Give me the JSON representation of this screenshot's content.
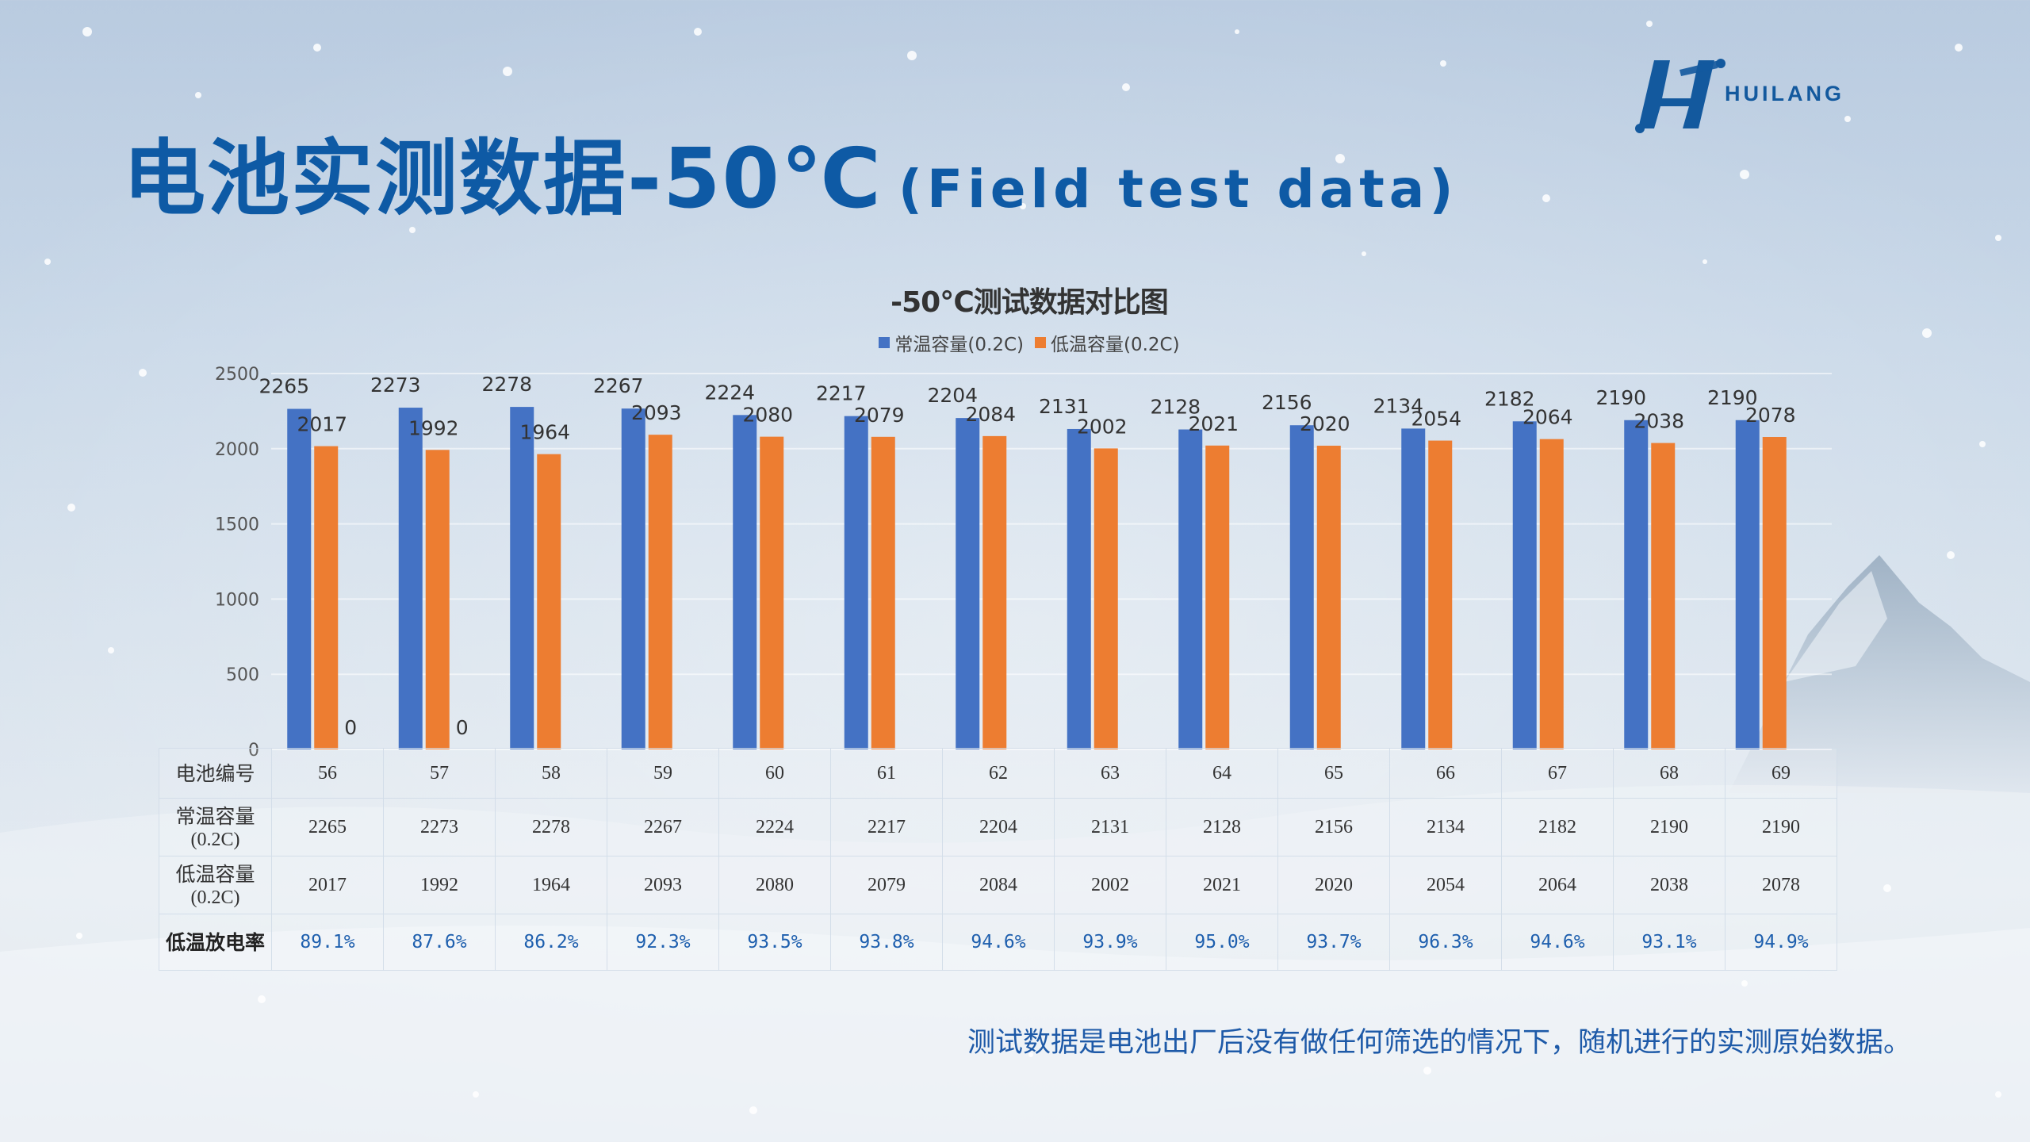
{
  "brand": {
    "name": "HUILANG",
    "logo_icon": "huilang-h-logo-icon",
    "color": "#13599e"
  },
  "header": {
    "title": "电池实测数据-50℃",
    "subtitle": "(Field test data)",
    "title_color": "#0e5aa5"
  },
  "chart_data": {
    "type": "bar",
    "title": "-50℃测试数据对比图",
    "xlabel": "",
    "ylabel": "",
    "ylim": [
      0,
      2500
    ],
    "yticks": [
      0,
      500,
      1000,
      1500,
      2000,
      2500
    ],
    "grid": true,
    "legend": "top-center",
    "categories": [
      "56",
      "57",
      "58",
      "59",
      "60",
      "61",
      "62",
      "63",
      "64",
      "65",
      "66",
      "67",
      "68",
      "69"
    ],
    "series": [
      {
        "name": "常温容量(0.2C)",
        "color": "#4472c4",
        "values": [
          2265,
          2273,
          2278,
          2267,
          2224,
          2217,
          2204,
          2131,
          2128,
          2156,
          2134,
          2182,
          2190,
          2190
        ]
      },
      {
        "name": "低温容量(0.2C)",
        "color": "#ed7d31",
        "values": [
          2017,
          1992,
          1964,
          2093,
          2080,
          2079,
          2084,
          2002,
          2021,
          2020,
          2054,
          2064,
          2038,
          2078
        ],
        "stray_zero_labels": [
          "0",
          "0"
        ]
      }
    ]
  },
  "table": {
    "rows": [
      {
        "header": "电池编号",
        "values": [
          "56",
          "57",
          "58",
          "59",
          "60",
          "61",
          "62",
          "63",
          "64",
          "65",
          "66",
          "67",
          "68",
          "69"
        ]
      },
      {
        "header": "常温容量",
        "header_sub": "(0.2C)",
        "values": [
          "2265",
          "2273",
          "2278",
          "2267",
          "2224",
          "2217",
          "2204",
          "2131",
          "2128",
          "2156",
          "2134",
          "2182",
          "2190",
          "2190"
        ]
      },
      {
        "header": "低温容量",
        "header_sub": "(0.2C)",
        "values": [
          "2017",
          "1992",
          "1964",
          "2093",
          "2080",
          "2079",
          "2084",
          "2002",
          "2021",
          "2020",
          "2054",
          "2064",
          "2038",
          "2078"
        ]
      },
      {
        "header": "低温放电率",
        "values": [
          "89.1%",
          "87.6%",
          "86.2%",
          "92.3%",
          "93.5%",
          "93.8%",
          "94.6%",
          "93.9%",
          "95.0%",
          "93.7%",
          "96.3%",
          "94.6%",
          "93.1%",
          "94.9%"
        ]
      }
    ]
  },
  "footnote": "测试数据是电池出厂后没有做任何筛选的情况下，随机进行的实测原始数据。"
}
